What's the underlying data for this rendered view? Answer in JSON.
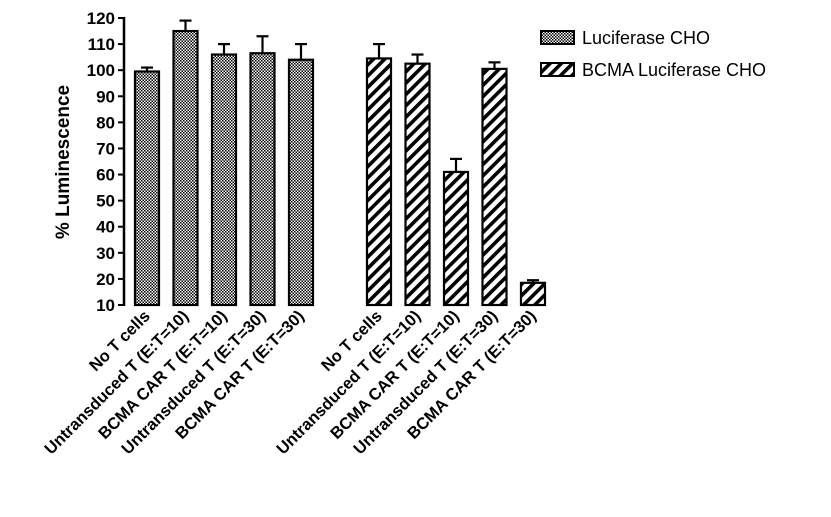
{
  "chart_data": {
    "type": "bar",
    "title": "",
    "xlabel": "",
    "ylabel": "% Luminescence",
    "ylim": [
      10,
      120
    ],
    "yticks": [
      10,
      20,
      30,
      40,
      50,
      60,
      70,
      80,
      90,
      100,
      110,
      120
    ],
    "grid": false,
    "legend_position": "top-right",
    "colors": {
      "bar_fill": "#9a9a9a",
      "bar_stroke": "#000000",
      "background": "#ffffff"
    },
    "series": [
      {
        "name": "Luciferase CHO",
        "pattern": "checkerboard",
        "categories": [
          "No T cells",
          "Untransduced T (E:T=10)",
          "BCMA CAR T (E:T=10)",
          "Untransduced T (E:T=30)",
          "BCMA CAR T (E:T=30)"
        ],
        "values": [
          99.5,
          115,
          106,
          106.5,
          104
        ],
        "errors": [
          1.5,
          4,
          4,
          6.5,
          6
        ]
      },
      {
        "name": "BCMA Luciferase CHO",
        "pattern": "diagonal-stripes",
        "categories": [
          "No T cells",
          "Untransduced T (E:T=10)",
          "BCMA CAR T (E:T=10)",
          "Untransduced T (E:T=30)",
          "BCMA CAR T (E:T=30)"
        ],
        "values": [
          104.5,
          102.5,
          61,
          100.5,
          18.5
        ],
        "errors": [
          5.5,
          3.5,
          5,
          2.5,
          1
        ]
      }
    ]
  }
}
